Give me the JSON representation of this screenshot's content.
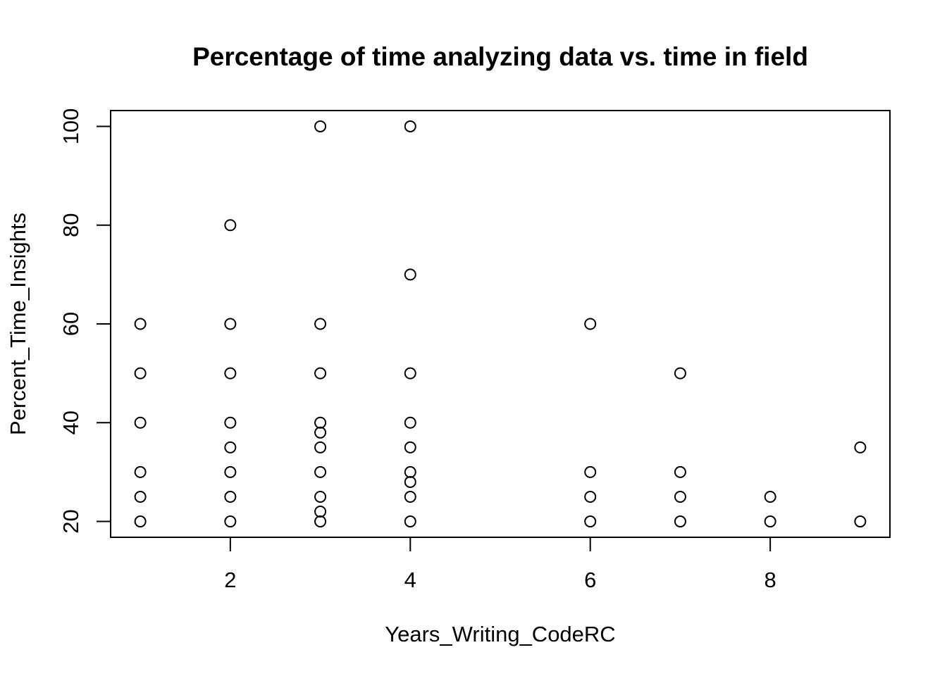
{
  "chart_data": {
    "type": "scatter",
    "title": "Percentage of time analyzing data vs. time in field",
    "xlabel": "Years_Writing_CodeRC",
    "ylabel": "Percent_Time_Insights",
    "xlim": [
      0.67,
      9.33
    ],
    "ylim": [
      16.8,
      103.2
    ],
    "xticks": [
      "2",
      "4",
      "6",
      "8"
    ],
    "yticks": [
      "20",
      "40",
      "60",
      "80",
      "100"
    ],
    "grid": false,
    "legend": "none",
    "point_color": "#000000",
    "points": [
      {
        "x": 1,
        "y": 60
      },
      {
        "x": 1,
        "y": 50
      },
      {
        "x": 1,
        "y": 40
      },
      {
        "x": 1,
        "y": 30
      },
      {
        "x": 1,
        "y": 25
      },
      {
        "x": 1,
        "y": 20
      },
      {
        "x": 2,
        "y": 80
      },
      {
        "x": 2,
        "y": 60
      },
      {
        "x": 2,
        "y": 50
      },
      {
        "x": 2,
        "y": 40
      },
      {
        "x": 2,
        "y": 35
      },
      {
        "x": 2,
        "y": 30
      },
      {
        "x": 2,
        "y": 25
      },
      {
        "x": 2,
        "y": 20
      },
      {
        "x": 3,
        "y": 100
      },
      {
        "x": 3,
        "y": 60
      },
      {
        "x": 3,
        "y": 50
      },
      {
        "x": 3,
        "y": 40
      },
      {
        "x": 3,
        "y": 38
      },
      {
        "x": 3,
        "y": 35
      },
      {
        "x": 3,
        "y": 30
      },
      {
        "x": 3,
        "y": 25
      },
      {
        "x": 3,
        "y": 22
      },
      {
        "x": 3,
        "y": 20
      },
      {
        "x": 4,
        "y": 100
      },
      {
        "x": 4,
        "y": 70
      },
      {
        "x": 4,
        "y": 50
      },
      {
        "x": 4,
        "y": 40
      },
      {
        "x": 4,
        "y": 35
      },
      {
        "x": 4,
        "y": 30
      },
      {
        "x": 4,
        "y": 28
      },
      {
        "x": 4,
        "y": 25
      },
      {
        "x": 4,
        "y": 20
      },
      {
        "x": 6,
        "y": 60
      },
      {
        "x": 6,
        "y": 30
      },
      {
        "x": 6,
        "y": 25
      },
      {
        "x": 6,
        "y": 20
      },
      {
        "x": 7,
        "y": 50
      },
      {
        "x": 7,
        "y": 30
      },
      {
        "x": 7,
        "y": 25
      },
      {
        "x": 7,
        "y": 20
      },
      {
        "x": 8,
        "y": 25
      },
      {
        "x": 8,
        "y": 20
      },
      {
        "x": 9,
        "y": 35
      },
      {
        "x": 9,
        "y": 20
      }
    ]
  }
}
